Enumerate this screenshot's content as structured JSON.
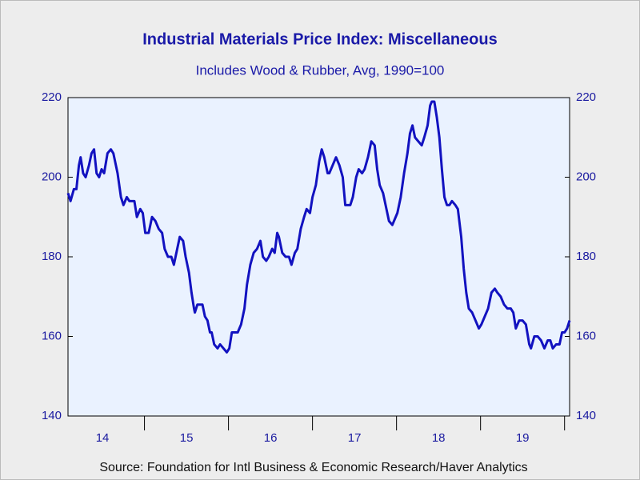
{
  "chart_data": {
    "type": "line",
    "title": "Industrial Materials Price Index: Miscellaneous",
    "subtitle": "Includes Wood & Rubber, Avg, 1990=100",
    "source": "Source:  Foundation for Intl Business & Economic Research/Haver Analytics",
    "color": "#1212c0",
    "x": [
      2014.09,
      2014.12,
      2014.16,
      2014.19,
      2014.22,
      2014.24,
      2014.27,
      2014.3,
      2014.34,
      2014.37,
      2014.4,
      2014.43,
      2014.46,
      2014.49,
      2014.52,
      2014.56,
      2014.6,
      2014.63,
      2014.68,
      2014.72,
      2014.75,
      2014.79,
      2014.82,
      2014.88,
      2014.91,
      2014.95,
      2014.98,
      2015.01,
      2015.05,
      2015.09,
      2015.13,
      2015.17,
      2015.21,
      2015.24,
      2015.28,
      2015.32,
      2015.35,
      2015.39,
      2015.42,
      2015.46,
      2015.49,
      2015.53,
      2015.56,
      2015.59,
      2015.6,
      2015.63,
      2015.66,
      2015.69,
      2015.72,
      2015.75,
      2015.78,
      2015.8,
      2015.83,
      2015.87,
      2015.9,
      2015.94,
      2015.98,
      2016.01,
      2016.04,
      2016.07,
      2016.11,
      2016.15,
      2016.19,
      2016.22,
      2016.26,
      2016.3,
      2016.34,
      2016.38,
      2016.41,
      2016.45,
      2016.48,
      2016.52,
      2016.55,
      2016.58,
      2016.6,
      2016.64,
      2016.68,
      2016.72,
      2016.75,
      2016.79,
      2016.82,
      2016.86,
      2016.9,
      2016.93,
      2016.97,
      2017.0,
      2017.04,
      2017.08,
      2017.11,
      2017.14,
      2017.18,
      2017.2,
      2017.24,
      2017.28,
      2017.32,
      2017.36,
      2017.39,
      2017.41,
      2017.45,
      2017.48,
      2017.52,
      2017.55,
      2017.59,
      2017.62,
      2017.66,
      2017.7,
      2017.74,
      2017.77,
      2017.8,
      2017.84,
      2017.88,
      2017.91,
      2017.95,
      2017.99,
      2018.01,
      2018.05,
      2018.09,
      2018.13,
      2018.16,
      2018.19,
      2018.22,
      2018.26,
      2018.3,
      2018.33,
      2018.37,
      2018.4,
      2018.42,
      2018.45,
      2018.48,
      2018.51,
      2018.54,
      2018.57,
      2018.6,
      2018.63,
      2018.66,
      2018.7,
      2018.73,
      2018.77,
      2018.8,
      2018.83,
      2018.86,
      2018.9,
      2018.94,
      2018.98,
      2019.01,
      2019.05,
      2019.09,
      2019.13,
      2019.17,
      2019.2,
      2019.24,
      2019.28,
      2019.32,
      2019.36,
      2019.39,
      2019.42,
      2019.46,
      2019.5,
      2019.54,
      2019.58,
      2019.6,
      2019.64,
      2019.68,
      2019.72,
      2019.76,
      2019.8,
      2019.83,
      2019.86,
      2019.9,
      2019.94,
      2019.97,
      2020.0,
      2020.03,
      2020.06
    ],
    "values": [
      196,
      194,
      197,
      197,
      203,
      205,
      201,
      200,
      203,
      206,
      207,
      201,
      200,
      202,
      201,
      206,
      207,
      206,
      201,
      195,
      193,
      195,
      194,
      194,
      190,
      192,
      191,
      186,
      186,
      190,
      189,
      187,
      186,
      182,
      180,
      180,
      178,
      182,
      185,
      184,
      180,
      176,
      171,
      167,
      166,
      168,
      168,
      168,
      165,
      164,
      161,
      161,
      158,
      157,
      158,
      157,
      156,
      157,
      161,
      161,
      161,
      163,
      167,
      173,
      178,
      181,
      182,
      184,
      180,
      179,
      180,
      182,
      181,
      186,
      185,
      181,
      180,
      180,
      178,
      181,
      182,
      187,
      190,
      192,
      191,
      195,
      198,
      204,
      207,
      205,
      201,
      201,
      203,
      205,
      203,
      200,
      193,
      193,
      193,
      195,
      200,
      202,
      201,
      202,
      205,
      209,
      208,
      202,
      198,
      196,
      192,
      189,
      188,
      190,
      191,
      195,
      201,
      206,
      211,
      213,
      210,
      209,
      208,
      210,
      213,
      218,
      219,
      219,
      215,
      210,
      202,
      195,
      193,
      193,
      194,
      193,
      192,
      185,
      177,
      171,
      167,
      166,
      164,
      162,
      163,
      165,
      167,
      171,
      172,
      171,
      170,
      168,
      167,
      167,
      166,
      162,
      164,
      164,
      163,
      158,
      157,
      160,
      160,
      159,
      157,
      159,
      159,
      157,
      158,
      158,
      161,
      161,
      162,
      164
    ],
    "xlim": [
      2014.09,
      2020.06
    ],
    "xticks": [
      {
        "value": 2014.5,
        "label": "14"
      },
      {
        "value": 2015.5,
        "label": "15"
      },
      {
        "value": 2016.5,
        "label": "16"
      },
      {
        "value": 2017.5,
        "label": "17"
      },
      {
        "value": 2018.5,
        "label": "18"
      },
      {
        "value": 2019.5,
        "label": "19"
      }
    ],
    "ylim": [
      140,
      220
    ],
    "yticks": [
      140,
      160,
      180,
      200,
      220
    ],
    "y2lim": [
      140,
      220
    ],
    "y2ticks": [
      140,
      160,
      180,
      200,
      220
    ]
  }
}
